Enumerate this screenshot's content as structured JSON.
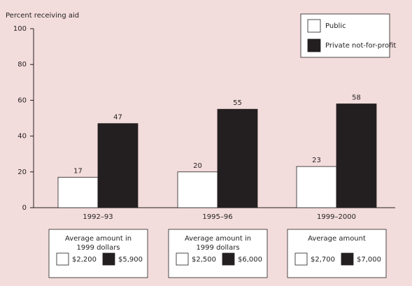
{
  "chart_data": {
    "type": "bar",
    "ylabel": "Percent receiving aid",
    "categories": [
      "1992–93",
      "1995–96",
      "1999–2000"
    ],
    "series": [
      {
        "name": "Public",
        "color": "#ffffff",
        "values": [
          17,
          20,
          23
        ]
      },
      {
        "name": "Private not-for-profit",
        "color": "#231f20",
        "values": [
          47,
          55,
          58
        ]
      }
    ],
    "ylim": [
      0,
      100
    ],
    "yticks": [
      0,
      20,
      40,
      60,
      80,
      100
    ],
    "grid": false,
    "legend": "top-right",
    "amount_panels": [
      {
        "title": [
          "Average amount in",
          "1999 dollars"
        ],
        "labels": [
          "$2,200",
          "$5,900"
        ]
      },
      {
        "title": [
          "Average amount in",
          "1999 dollars"
        ],
        "labels": [
          "$2,500",
          "$6,000"
        ]
      },
      {
        "title": [
          "Average amount"
        ],
        "labels": [
          "$2,700",
          "$7,000"
        ]
      }
    ]
  }
}
